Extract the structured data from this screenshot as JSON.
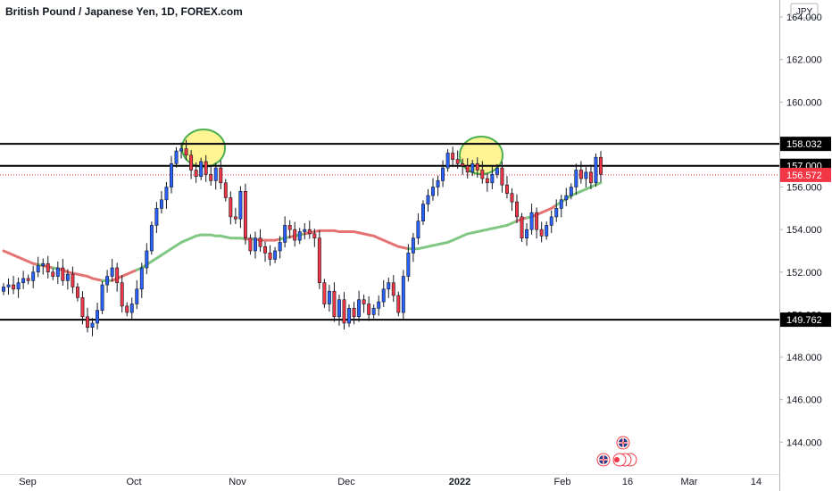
{
  "chart_data": {
    "type": "candlestick",
    "title": "British Pound / Japanese Yen, 1D, FOREX.com",
    "currency": "JPY",
    "ylim": [
      142.5,
      164.8
    ],
    "y_ticks": [
      "164.000",
      "162.000",
      "160.000",
      "158.000",
      "156.000",
      "154.000",
      "152.000",
      "150.000",
      "148.000",
      "146.000",
      "144.000"
    ],
    "x_ticks": [
      "Sep",
      "Oct",
      "Nov",
      "Dec",
      "2022",
      "Feb",
      "16",
      "Mar",
      "14"
    ],
    "horizontal_levels": [
      {
        "label": "158.032",
        "value": 158.032,
        "color": "#000000"
      },
      {
        "label": "157.000",
        "value": 157.0,
        "color": "#000000"
      },
      {
        "label": "149.762",
        "value": 149.762,
        "color": "#000000"
      }
    ],
    "last_price": {
      "label": "156.572",
      "value": 156.572,
      "color": "#f23645"
    },
    "up_color": "#2962ff",
    "down_color": "#f23645",
    "ma_colors": {
      "below_price": "#81c784",
      "above_price": "#e57373"
    },
    "highlight_fill": "#ffeb3b",
    "highlight_stroke": "#4caf50",
    "closes": [
      151.3,
      151.4,
      151.2,
      151.5,
      151.7,
      151.6,
      152.0,
      152.3,
      152.4,
      152.0,
      151.8,
      152.2,
      151.6,
      151.9,
      151.3,
      150.8,
      149.9,
      149.4,
      149.6,
      150.2,
      151.4,
      151.8,
      152.2,
      151.5,
      150.4,
      150.1,
      150.5,
      151.2,
      152.2,
      153.0,
      154.2,
      155.0,
      155.4,
      156.0,
      157.1,
      157.7,
      157.8,
      157.5,
      156.8,
      156.5,
      157.2,
      156.6,
      156.3,
      156.9,
      156.2,
      155.5,
      154.6,
      154.5,
      155.8,
      153.6,
      153.0,
      153.6,
      153.2,
      152.9,
      152.6,
      153.0,
      153.4,
      154.2,
      154.0,
      153.5,
      153.9,
      154.0,
      153.8,
      153.6,
      151.5,
      150.5,
      151.1,
      149.9,
      150.7,
      149.6,
      150.3,
      149.9,
      150.7,
      150.5,
      150.0,
      150.3,
      150.6,
      151.2,
      151.5,
      150.9,
      150.1,
      151.8,
      152.9,
      153.6,
      154.4,
      155.2,
      155.6,
      156.0,
      156.3,
      156.9,
      157.6,
      157.3,
      157.1,
      157.0,
      156.7,
      157.1,
      156.8,
      156.4,
      156.2,
      156.6,
      156.9,
      156.1,
      155.7,
      155.3,
      154.6,
      153.6,
      154.0,
      154.8,
      154.0,
      153.7,
      154.2,
      154.6,
      155.0,
      155.4,
      155.6,
      156.0,
      156.8,
      156.4,
      156.7,
      156.2,
      157.4,
      156.6
    ],
    "ma_values": [
      153.0,
      152.9,
      152.8,
      152.7,
      152.6,
      152.5,
      152.4,
      152.35,
      152.3,
      152.25,
      152.2,
      152.15,
      152.1,
      152.0,
      151.95,
      151.9,
      151.85,
      151.8,
      151.7,
      151.65,
      151.6,
      151.6,
      151.6,
      151.7,
      151.8,
      151.9,
      152.0,
      152.1,
      152.2,
      152.35,
      152.5,
      152.65,
      152.8,
      152.95,
      153.1,
      153.25,
      153.4,
      153.5,
      153.6,
      153.7,
      153.75,
      153.75,
      153.75,
      153.7,
      153.7,
      153.65,
      153.6,
      153.6,
      153.6,
      153.55,
      153.55,
      153.55,
      153.5,
      153.5,
      153.5,
      153.5,
      153.55,
      153.6,
      153.65,
      153.7,
      153.75,
      153.8,
      153.85,
      153.9,
      153.95,
      153.95,
      153.95,
      153.95,
      153.9,
      153.9,
      153.9,
      153.9,
      153.85,
      153.8,
      153.75,
      153.7,
      153.6,
      153.5,
      153.4,
      153.3,
      153.2,
      153.15,
      153.1,
      153.1,
      153.1,
      153.15,
      153.2,
      153.25,
      153.3,
      153.35,
      153.4,
      153.5,
      153.6,
      153.7,
      153.8,
      153.85,
      153.9,
      153.95,
      154.0,
      154.05,
      154.1,
      154.15,
      154.2,
      154.3,
      154.4,
      154.5,
      154.55,
      154.6,
      154.7,
      154.8,
      154.9,
      155.0,
      155.15,
      155.3,
      155.45,
      155.6,
      155.7,
      155.8,
      155.9,
      156.0,
      156.1,
      156.2
    ]
  }
}
